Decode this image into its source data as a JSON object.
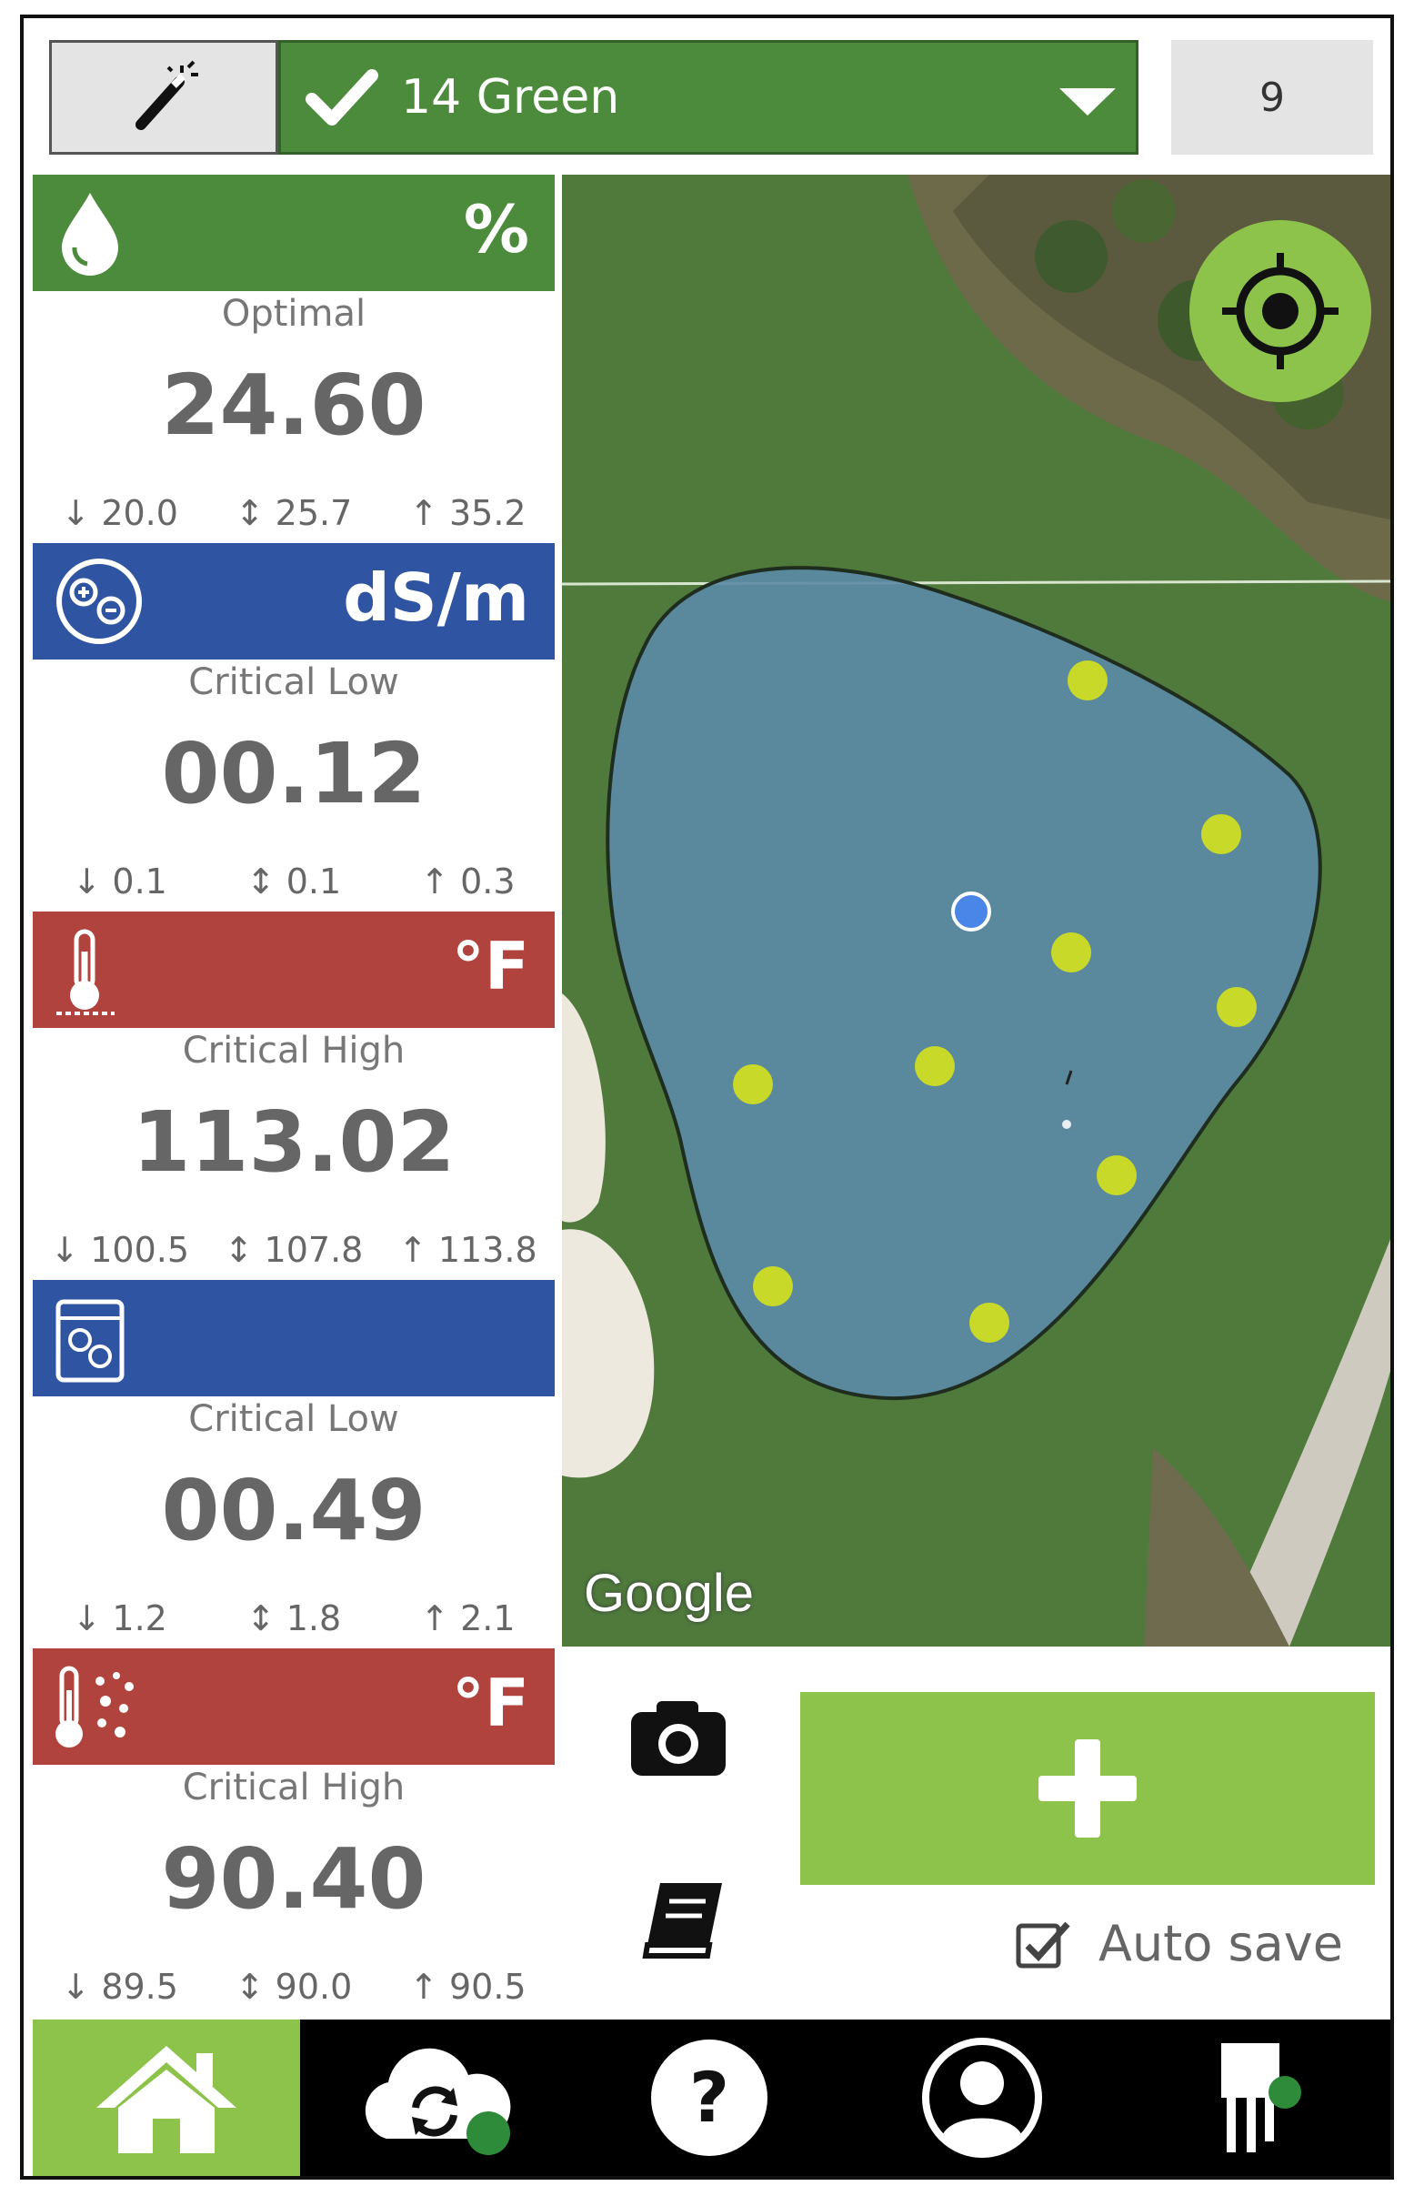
{
  "top_bar": {
    "wand_icon": "magic-wand-icon",
    "hole_label": "14 Green",
    "check_icon": "check-icon",
    "dropdown_icon": "chevron-down-icon",
    "count": "9"
  },
  "sensors": [
    {
      "icon": "water-drop-icon",
      "unit": "%",
      "status": "Optimal",
      "value": "24.60",
      "range": [
        "20.0",
        "25.7",
        "35.2"
      ],
      "color": "#4b8b3b"
    },
    {
      "icon": "salinity-icon",
      "unit": "dS/m",
      "status": "Critical Low",
      "value": "00.12",
      "range": [
        "0.1",
        "0.1",
        "0.3"
      ],
      "color": "#2f54a1"
    },
    {
      "icon": "soil-thermometer-icon",
      "unit": "°F",
      "status": "Critical High",
      "value": "113.02",
      "range": [
        "100.5",
        "107.8",
        "113.8"
      ],
      "color": "#b0433d"
    },
    {
      "icon": "water-salinity-icon",
      "unit": "",
      "status": "Critical Low",
      "value": "00.49",
      "range": [
        "1.2",
        "1.8",
        "2.1"
      ],
      "color": "#2f54a1"
    },
    {
      "icon": "air-thermometer-icon",
      "unit": "°F",
      "status": "Critical High",
      "value": "90.40",
      "range": [
        "89.5",
        "90.0",
        "90.5"
      ],
      "color": "#b0433d"
    }
  ],
  "map": {
    "attribution": "Google",
    "locate_icon": "crosshair-icon",
    "sample_point_count": 10
  },
  "actions": {
    "camera_icon": "camera-icon",
    "notes_icon": "notebook-icon",
    "add_icon": "plus-icon",
    "autosave_label": "Auto save",
    "autosave_checked": true
  },
  "nav": [
    {
      "icon": "home-icon",
      "active": true
    },
    {
      "icon": "cloud-sync-icon",
      "active": false
    },
    {
      "icon": "help-icon",
      "active": false
    },
    {
      "icon": "profile-icon",
      "active": false
    },
    {
      "icon": "sensor-probe-icon",
      "active": false
    }
  ]
}
